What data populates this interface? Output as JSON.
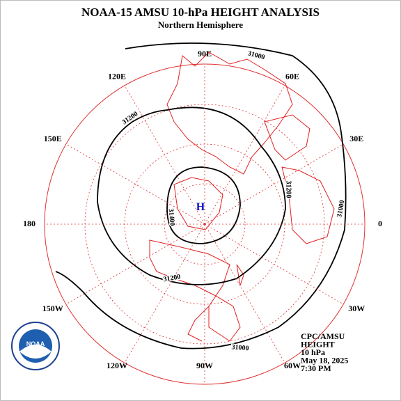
{
  "header": {
    "title": "NOAA-15 AMSU 10-hPa HEIGHT ANALYSIS",
    "subtitle": "Northern Hemisphere"
  },
  "longitude_labels": [
    "90E",
    "60E",
    "30E",
    "0",
    "30W",
    "60W",
    "90W",
    "120W",
    "150W",
    "180",
    "150E",
    "120E"
  ],
  "contour_labels": [
    "31000",
    "31000",
    "31000",
    "31200",
    "31200",
    "31200",
    "31400"
  ],
  "high_marker": "H",
  "info": [
    "CPC/AMSU",
    "HEIGHT",
    "10 hPa",
    "May 18, 2025",
    "7:30 PM"
  ],
  "logo": "NOAA"
}
